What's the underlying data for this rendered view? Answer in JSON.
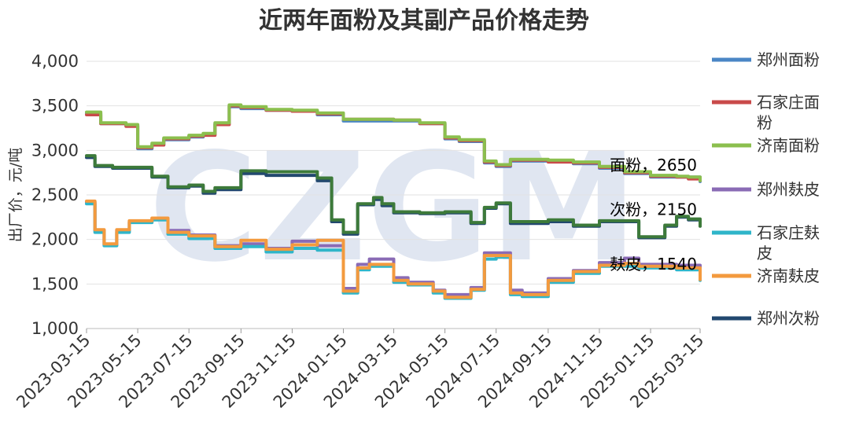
{
  "chart_data": {
    "type": "line",
    "title": "近两年面粉及其副产品价格走势",
    "ylabel": "出厂价，元/吨",
    "xlabel": "",
    "watermark": "CZGM",
    "ylim": [
      1000,
      4000
    ],
    "yticks": [
      "1,000",
      "1,500",
      "2,000",
      "2,500",
      "3,000",
      "3,500",
      "4,000"
    ],
    "ytick_values": [
      1000,
      1500,
      2000,
      2500,
      3000,
      3500,
      4000
    ],
    "x_ticks": [
      "2023-03-15",
      "2023-05-15",
      "2023-07-15",
      "2023-09-15",
      "2023-11-15",
      "2024-01-15",
      "2024-03-15",
      "2024-05-15",
      "2024-07-15",
      "2024-09-15",
      "2024-11-15",
      "2025-01-15",
      "2025-03-15"
    ],
    "grid": "horizontal",
    "legend_position": "right",
    "annotations": [
      {
        "text": "面粉，2650",
        "x": "2025-03-15",
        "y": 2650
      },
      {
        "text": "次粉，2150",
        "x": "2025-03-15",
        "y": 2150
      },
      {
        "text": "麸皮，1540",
        "x": "2025-03-15",
        "y": 1540
      }
    ],
    "series": [
      {
        "name": "郑州面粉",
        "color": "#4a86c5",
        "x": [
          "2023-03-15",
          "2023-04-01",
          "2023-05-01",
          "2023-05-15",
          "2023-06-01",
          "2023-06-15",
          "2023-07-15",
          "2023-08-01",
          "2023-08-15",
          "2023-09-01",
          "2023-09-15",
          "2023-10-15",
          "2023-11-15",
          "2023-12-15",
          "2024-01-15",
          "2024-02-15",
          "2024-03-15",
          "2024-04-15",
          "2024-05-15",
          "2024-06-01",
          "2024-07-01",
          "2024-07-15",
          "2024-08-01",
          "2024-09-15",
          "2024-10-15",
          "2024-11-15",
          "2024-12-15",
          "2025-01-15",
          "2025-02-15",
          "2025-03-01",
          "2025-03-15"
        ],
        "values": [
          3420,
          3300,
          3280,
          3020,
          3060,
          3120,
          3150,
          3180,
          3300,
          3490,
          3470,
          3450,
          3440,
          3400,
          3330,
          3330,
          3330,
          3300,
          3130,
          3100,
          2860,
          2820,
          2880,
          2880,
          2850,
          2800,
          2740,
          2700,
          2700,
          2700,
          2650
        ]
      },
      {
        "name": "石家庄面粉",
        "color": "#c94a4a",
        "x": [
          "2023-03-15",
          "2023-04-01",
          "2023-05-01",
          "2023-05-15",
          "2023-06-01",
          "2023-06-15",
          "2023-07-15",
          "2023-08-01",
          "2023-08-15",
          "2023-09-01",
          "2023-09-15",
          "2023-10-15",
          "2023-11-15",
          "2023-12-15",
          "2024-01-15",
          "2024-02-15",
          "2024-03-15",
          "2024-04-15",
          "2024-05-15",
          "2024-06-01",
          "2024-07-01",
          "2024-07-15",
          "2024-08-01",
          "2024-09-15",
          "2024-10-15",
          "2024-11-15",
          "2024-12-15",
          "2025-01-15",
          "2025-02-15",
          "2025-03-01",
          "2025-03-15"
        ],
        "values": [
          3400,
          3300,
          3270,
          3030,
          3060,
          3130,
          3160,
          3170,
          3290,
          3500,
          3480,
          3450,
          3440,
          3410,
          3350,
          3350,
          3340,
          3300,
          3140,
          3110,
          2870,
          2830,
          2890,
          2870,
          2860,
          2810,
          2750,
          2710,
          2700,
          2680,
          2660
        ]
      },
      {
        "name": "济南面粉",
        "color": "#8bbf4e",
        "x": [
          "2023-03-15",
          "2023-04-01",
          "2023-05-01",
          "2023-05-15",
          "2023-06-01",
          "2023-06-15",
          "2023-07-15",
          "2023-08-01",
          "2023-08-15",
          "2023-09-01",
          "2023-09-15",
          "2023-10-15",
          "2023-11-15",
          "2023-12-15",
          "2024-01-15",
          "2024-02-15",
          "2024-03-15",
          "2024-04-15",
          "2024-05-15",
          "2024-06-01",
          "2024-07-01",
          "2024-07-15",
          "2024-08-01",
          "2024-09-15",
          "2024-10-15",
          "2024-11-15",
          "2024-12-15",
          "2025-01-15",
          "2025-02-15",
          "2025-03-01",
          "2025-03-15"
        ],
        "values": [
          3430,
          3310,
          3290,
          3040,
          3080,
          3140,
          3170,
          3190,
          3310,
          3510,
          3490,
          3460,
          3450,
          3420,
          3350,
          3350,
          3340,
          3310,
          3150,
          3120,
          2880,
          2840,
          2900,
          2890,
          2870,
          2820,
          2760,
          2720,
          2710,
          2700,
          2660
        ]
      },
      {
        "name": "郑州麸皮",
        "color": "#8a6bb5",
        "x": [
          "2023-03-15",
          "2023-03-25",
          "2023-04-05",
          "2023-04-20",
          "2023-05-05",
          "2023-06-01",
          "2023-06-20",
          "2023-07-15",
          "2023-08-15",
          "2023-09-15",
          "2023-10-15",
          "2023-11-15",
          "2023-12-15",
          "2024-01-15",
          "2024-02-01",
          "2024-02-15",
          "2024-03-15",
          "2024-04-01",
          "2024-05-01",
          "2024-05-15",
          "2024-06-15",
          "2024-07-01",
          "2024-07-15",
          "2024-08-01",
          "2024-08-15",
          "2024-09-15",
          "2024-10-15",
          "2024-11-15",
          "2024-12-15",
          "2025-01-01",
          "2025-02-15",
          "2025-03-15"
        ],
        "values": [
          2420,
          2100,
          1940,
          2100,
          2200,
          2230,
          2100,
          2050,
          1930,
          1950,
          1900,
          1980,
          1930,
          1450,
          1720,
          1780,
          1570,
          1520,
          1430,
          1380,
          1460,
          1850,
          1850,
          1430,
          1400,
          1560,
          1650,
          1740,
          1790,
          1720,
          1710,
          1550
        ]
      },
      {
        "name": "石家庄麸皮",
        "color": "#2fb5c9",
        "x": [
          "2023-03-15",
          "2023-03-25",
          "2023-04-05",
          "2023-04-20",
          "2023-05-05",
          "2023-06-01",
          "2023-06-20",
          "2023-07-15",
          "2023-08-15",
          "2023-09-15",
          "2023-10-15",
          "2023-11-15",
          "2023-12-15",
          "2024-01-15",
          "2024-02-01",
          "2024-02-15",
          "2024-03-15",
          "2024-04-01",
          "2024-05-01",
          "2024-05-15",
          "2024-06-15",
          "2024-07-01",
          "2024-07-15",
          "2024-08-01",
          "2024-08-15",
          "2024-09-15",
          "2024-10-15",
          "2024-11-15",
          "2024-12-15",
          "2025-01-01",
          "2025-02-15",
          "2025-03-15"
        ],
        "values": [
          2400,
          2080,
          1930,
          2080,
          2190,
          2220,
          2060,
          2010,
          1900,
          1920,
          1860,
          1900,
          1880,
          1400,
          1660,
          1700,
          1520,
          1490,
          1400,
          1340,
          1430,
          1780,
          1800,
          1380,
          1360,
          1520,
          1620,
          1700,
          1700,
          1680,
          1660,
          1540
        ]
      },
      {
        "name": "济南麸皮",
        "color": "#f39a3e",
        "x": [
          "2023-03-15",
          "2023-03-25",
          "2023-04-05",
          "2023-04-20",
          "2023-05-05",
          "2023-06-01",
          "2023-06-20",
          "2023-07-15",
          "2023-08-15",
          "2023-09-15",
          "2023-10-15",
          "2023-11-15",
          "2023-12-15",
          "2024-01-15",
          "2024-02-01",
          "2024-02-15",
          "2024-03-15",
          "2024-04-01",
          "2024-05-01",
          "2024-05-15",
          "2024-06-15",
          "2024-07-01",
          "2024-07-15",
          "2024-08-01",
          "2024-08-15",
          "2024-09-15",
          "2024-10-15",
          "2024-11-15",
          "2024-12-15",
          "2025-01-01",
          "2025-02-15",
          "2025-03-15"
        ],
        "values": [
          2430,
          2110,
          1950,
          2110,
          2210,
          2240,
          2080,
          2040,
          1920,
          1990,
          1890,
          1940,
          1990,
          1420,
          1680,
          1720,
          1540,
          1500,
          1420,
          1350,
          1440,
          1820,
          1820,
          1400,
          1380,
          1540,
          1640,
          1710,
          1730,
          1700,
          1680,
          1550
        ]
      },
      {
        "name": "郑州次粉",
        "color": "#22486f",
        "x": [
          "2023-03-15",
          "2023-03-25",
          "2023-04-15",
          "2023-05-15",
          "2023-06-01",
          "2023-06-20",
          "2023-07-15",
          "2023-08-01",
          "2023-08-15",
          "2023-09-01",
          "2023-09-15",
          "2023-10-15",
          "2023-11-15",
          "2023-12-15",
          "2024-01-01",
          "2024-01-15",
          "2024-02-01",
          "2024-02-20",
          "2024-03-01",
          "2024-03-15",
          "2024-04-15",
          "2024-05-15",
          "2024-06-15",
          "2024-07-01",
          "2024-07-15",
          "2024-08-01",
          "2024-09-15",
          "2024-10-15",
          "2024-11-15",
          "2024-12-15",
          "2025-01-01",
          "2025-02-01",
          "2025-02-15",
          "2025-03-01",
          "2025-03-15"
        ],
        "values": [
          2920,
          2820,
          2800,
          2800,
          2700,
          2580,
          2600,
          2520,
          2560,
          2560,
          2740,
          2720,
          2720,
          2660,
          2200,
          2060,
          2390,
          2450,
          2380,
          2300,
          2290,
          2300,
          2180,
          2350,
          2400,
          2180,
          2200,
          2150,
          2200,
          2200,
          2020,
          2150,
          2250,
          2220,
          2150
        ]
      },
      {
        "name": "",
        "color": "#3d7a3a",
        "legend": false,
        "x": [
          "2023-03-15",
          "2023-03-25",
          "2023-04-15",
          "2023-05-15",
          "2023-06-01",
          "2023-06-20",
          "2023-07-15",
          "2023-08-01",
          "2023-08-15",
          "2023-09-01",
          "2023-09-15",
          "2023-10-15",
          "2023-11-15",
          "2023-12-15",
          "2024-01-01",
          "2024-01-15",
          "2024-02-01",
          "2024-02-20",
          "2024-03-01",
          "2024-03-15",
          "2024-04-15",
          "2024-05-15",
          "2024-06-15",
          "2024-07-01",
          "2024-07-15",
          "2024-08-01",
          "2024-09-15",
          "2024-10-15",
          "2024-11-15",
          "2024-12-15",
          "2025-01-01",
          "2025-02-01",
          "2025-02-15",
          "2025-03-01",
          "2025-03-15"
        ],
        "values": [
          2940,
          2830,
          2810,
          2810,
          2710,
          2590,
          2610,
          2540,
          2580,
          2580,
          2770,
          2760,
          2760,
          2690,
          2220,
          2080,
          2400,
          2470,
          2400,
          2310,
          2300,
          2310,
          2190,
          2360,
          2410,
          2200,
          2220,
          2160,
          2210,
          2210,
          2030,
          2160,
          2260,
          2230,
          2150
        ]
      }
    ]
  }
}
